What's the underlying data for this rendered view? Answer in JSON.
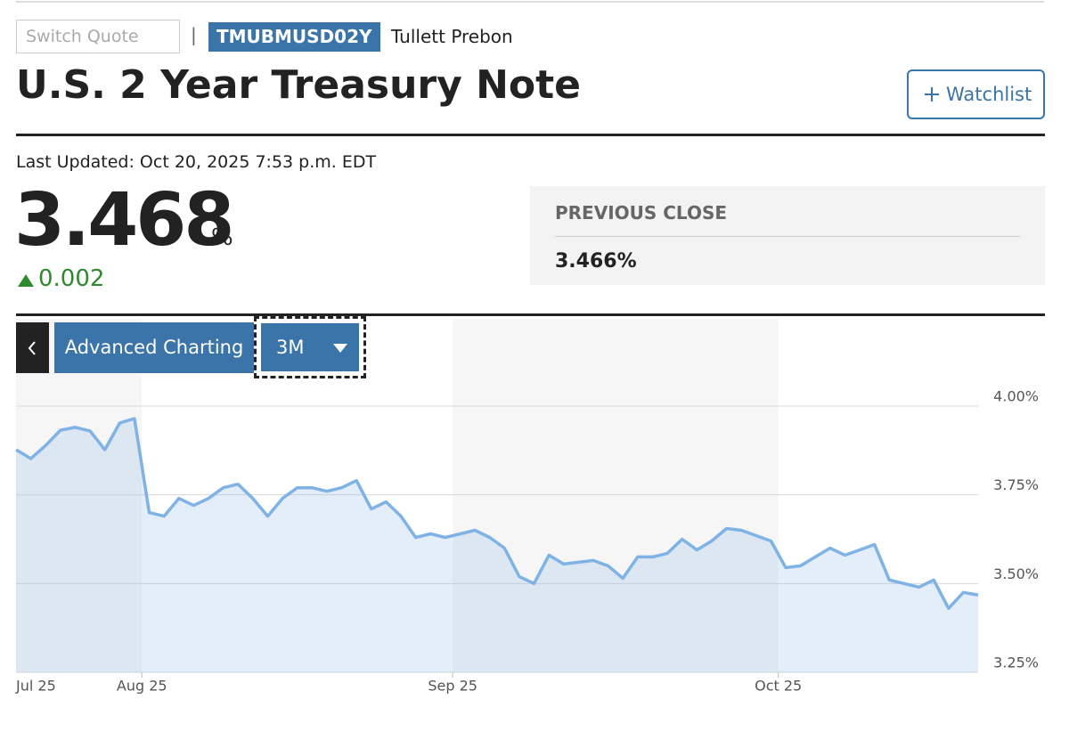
{
  "header": {
    "search_placeholder": "Switch Quote",
    "separator": "|",
    "ticker": "TMUBMUSD02Y",
    "source": "Tullett Prebon",
    "title": "U.S. 2 Year Treasury Note",
    "watchlist": "Watchlist"
  },
  "quote": {
    "last_updated": "Last Updated: Oct 20, 2025 7:53 p.m. EDT",
    "price": "3.468",
    "unit": "%",
    "change": "0.002"
  },
  "previous_close": {
    "label": "PREVIOUS CLOSE",
    "value": "3.466%"
  },
  "controls": {
    "advanced": "Advanced Charting",
    "range": "3M"
  },
  "chart_data": {
    "type": "area",
    "categories": [
      "Jul 25",
      null,
      null,
      null,
      null,
      null,
      null,
      null,
      null,
      "Aug 25",
      null,
      null,
      null,
      null,
      null,
      null,
      null,
      null,
      null,
      null,
      null,
      null,
      null,
      null,
      null,
      null,
      null,
      null,
      null,
      null,
      "Sep 25",
      null,
      null,
      null,
      null,
      null,
      null,
      null,
      null,
      null,
      null,
      null,
      null,
      null,
      null,
      null,
      null,
      null,
      null,
      null,
      null,
      null,
      "Oct 25",
      null,
      null,
      null,
      null,
      null,
      null,
      null,
      null,
      null,
      null,
      null,
      null,
      null
    ],
    "values": [
      3.877,
      3.852,
      3.889,
      3.932,
      3.94,
      3.93,
      3.877,
      3.952,
      3.965,
      3.7,
      3.69,
      3.74,
      3.72,
      3.74,
      3.77,
      3.78,
      3.74,
      3.69,
      3.74,
      3.77,
      3.77,
      3.76,
      3.77,
      3.79,
      3.71,
      3.73,
      3.69,
      3.63,
      3.64,
      3.63,
      3.64,
      3.65,
      3.63,
      3.6,
      3.52,
      3.5,
      3.58,
      3.555,
      3.56,
      3.565,
      3.55,
      3.515,
      3.575,
      3.575,
      3.585,
      3.625,
      3.595,
      3.62,
      3.655,
      3.65,
      3.635,
      3.62,
      3.545,
      3.55,
      3.575,
      3.6,
      3.58,
      3.595,
      3.61,
      3.51,
      3.5,
      3.49,
      3.51,
      3.43,
      3.475,
      3.468
    ],
    "color": "#7fb2e5",
    "ylim": [
      3.25,
      4.0
    ],
    "yticks": [
      {
        "value": 3.25,
        "label": "3.25%"
      },
      {
        "value": 3.5,
        "label": "3.50%"
      },
      {
        "value": 3.75,
        "label": "3.75%"
      },
      {
        "value": 4.0,
        "label": "4.00%"
      }
    ],
    "grid": true
  }
}
